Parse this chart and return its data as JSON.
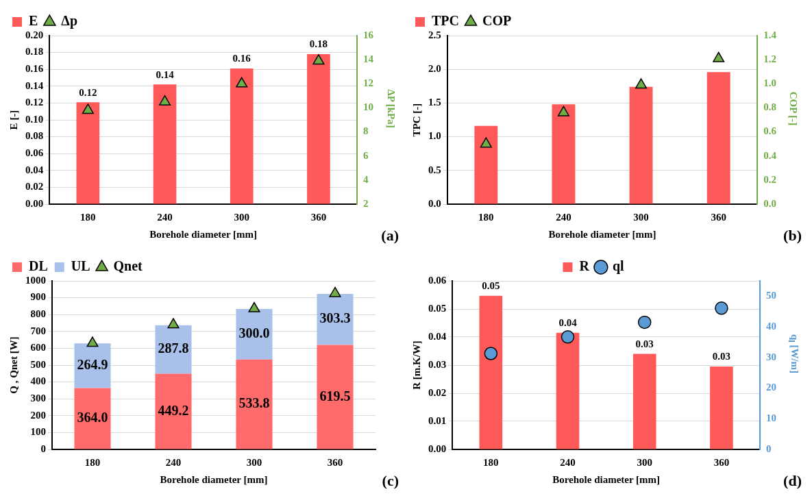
{
  "chart_data": [
    {
      "type": "bar",
      "xlabel": "Borehole diameter [mm]",
      "ylabel": "E [-]",
      "y2label": "ΔP [kPa]",
      "categories": [
        "180",
        "240",
        "300",
        "360"
      ],
      "series": [
        {
          "name": "E",
          "color": "#ff5a5a",
          "values": [
            0.121,
            0.142,
            0.161,
            0.178
          ],
          "value_labels": [
            "0.12",
            "0.14",
            "0.16",
            "0.18"
          ]
        },
        {
          "name": "Δp",
          "type": "scatter",
          "color": "#70ad47",
          "marker": "triangle",
          "axis": "y2",
          "x": [
            "180",
            "240",
            "300",
            "360"
          ],
          "values": [
            9.8,
            10.5,
            12.0,
            13.9
          ]
        }
      ],
      "ylim": [
        0,
        0.2
      ],
      "yticks": [
        {
          "value": 0,
          "label": "0.00"
        },
        {
          "value": 0.02,
          "label": "0.02"
        },
        {
          "value": 0.04,
          "label": "0.04"
        },
        {
          "value": 0.06,
          "label": "0.06"
        },
        {
          "value": 0.08,
          "label": "0.08"
        },
        {
          "value": 0.1,
          "label": "0.10"
        },
        {
          "value": 0.12,
          "label": "0.12"
        },
        {
          "value": 0.14,
          "label": "0.14"
        },
        {
          "value": 0.16,
          "label": "0.16"
        },
        {
          "value": 0.18,
          "label": "0.18"
        },
        {
          "value": 0.2,
          "label": "0.20"
        }
      ],
      "y2lim": [
        2,
        16
      ],
      "y2ticks": [
        2,
        4,
        6,
        8,
        10,
        12,
        14,
        16
      ],
      "grid": "y",
      "legend": "top left",
      "annotations": [
        "(a)"
      ]
    },
    {
      "type": "bar",
      "xlabel": "Borehole diameter [mm]",
      "ylabel": "TPC [-]",
      "y2label": "COP [-]",
      "categories": [
        "180",
        "240",
        "300",
        "360"
      ],
      "series": [
        {
          "name": "TPC",
          "color": "#ff5a5a",
          "values": [
            1.16,
            1.48,
            1.74,
            1.96
          ]
        },
        {
          "name": "COP",
          "type": "scatter",
          "color": "#70ad47",
          "marker": "triangle",
          "axis": "y2",
          "x": [
            "180",
            "240",
            "300",
            "360"
          ],
          "values": [
            0.5,
            0.76,
            0.99,
            1.21
          ]
        }
      ],
      "ylim": [
        0,
        2.5
      ],
      "yticks": [
        {
          "value": 0,
          "label": "0.0"
        },
        0.5,
        {
          "value": 1,
          "label": "1.0"
        },
        1.5,
        {
          "value": 2,
          "label": "2.0"
        },
        2.5
      ],
      "y2lim": [
        0,
        1.4
      ],
      "y2ticks": [
        {
          "value": 0,
          "label": "0.0"
        },
        0.2,
        0.4,
        0.6,
        0.8,
        {
          "value": 1,
          "label": "1.0"
        },
        1.2,
        1.4
      ],
      "grid": "y",
      "legend": "top left",
      "annotations": [
        "(b)"
      ]
    },
    {
      "type": "bar",
      "stacked": true,
      "xlabel": "Borehole diameter [mm]",
      "ylabel": "Q , Qnet [W]",
      "categories": [
        "180",
        "240",
        "300",
        "360"
      ],
      "series": [
        {
          "name": "DL",
          "color": "#ff6b6b",
          "values": [
            364.0,
            449.2,
            533.8,
            619.5
          ],
          "value_labels": [
            "364.0",
            "449.2",
            "533.8",
            "619.5"
          ]
        },
        {
          "name": "UL",
          "color": "#a9c1ea",
          "values": [
            264.9,
            287.8,
            300.0,
            303.3
          ],
          "value_labels": [
            "264.9",
            "287.8",
            "300.0",
            "303.3"
          ]
        },
        {
          "name": "Qnet",
          "type": "scatter",
          "color": "#70ad47",
          "marker": "triangle",
          "x": [
            "180",
            "240",
            "300",
            "360"
          ],
          "values": [
            630,
            740,
            835,
            925
          ]
        }
      ],
      "ylim": [
        0,
        1000
      ],
      "yticks": [
        0,
        100,
        200,
        300,
        400,
        500,
        600,
        700,
        800,
        900,
        1000
      ],
      "grid": "y",
      "legend": "top left",
      "annotations": [
        "(c)"
      ]
    },
    {
      "type": "bar",
      "xlabel": "Borehole diameter [mm]",
      "ylabel": "R [m.K/W]",
      "y2label": "q$_{l}$ [W/m]",
      "categories": [
        "180",
        "240",
        "300",
        "360"
      ],
      "series": [
        {
          "name": "R",
          "color": "#ff5a5a",
          "values": [
            0.0547,
            0.0415,
            0.034,
            0.0295
          ],
          "value_labels": [
            "0.05",
            "0.04",
            "0.03",
            "0.03"
          ]
        },
        {
          "name": "ql",
          "type": "scatter",
          "color": "#5b9bd5",
          "marker": "circle",
          "axis": "y2",
          "x": [
            "180",
            "240",
            "300",
            "360"
          ],
          "values": [
            31.3,
            36.7,
            41.5,
            46.1
          ]
        }
      ],
      "ylim": [
        0,
        0.06
      ],
      "yticks": [
        {
          "value": 0,
          "label": "0.00"
        },
        {
          "value": 0.01,
          "label": "0.01"
        },
        {
          "value": 0.02,
          "label": "0.02"
        },
        {
          "value": 0.03,
          "label": "0.03"
        },
        {
          "value": 0.04,
          "label": "0.04"
        },
        {
          "value": 0.05,
          "label": "0.05"
        },
        {
          "value": 0.06,
          "label": "0.06"
        }
      ],
      "y2lim": [
        0,
        55
      ],
      "y2ticks": [
        0,
        10,
        20,
        30,
        40,
        50
      ],
      "grid": "y",
      "legend": "top",
      "annotations": [
        "(d)"
      ]
    }
  ]
}
